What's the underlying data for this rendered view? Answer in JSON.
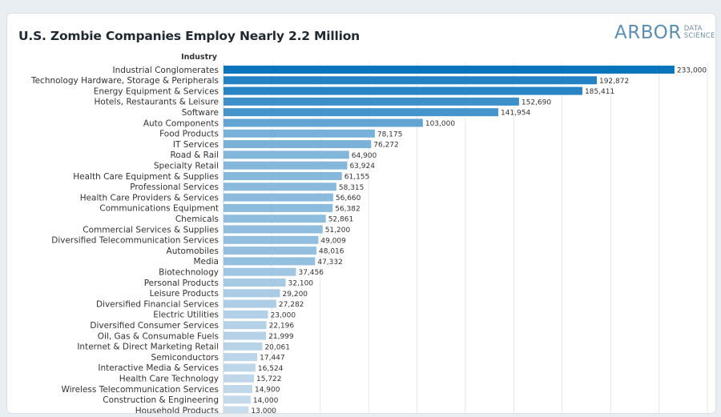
{
  "header": {
    "title": "U.S. Zombie Companies Employ Nearly 2.2 Million"
  },
  "logo": {
    "main": "ARBOR",
    "sub1": "DATA",
    "sub2": "SCIENCE"
  },
  "chart_data": {
    "type": "bar",
    "orientation": "horizontal",
    "title": "U.S. Zombie Companies Employ Nearly 2.2 Million",
    "ylabel": "Industry",
    "xlim": [
      0,
      250000
    ],
    "grid": true,
    "categories": [
      "Industrial Conglomerates",
      "Technology Hardware, Storage & Peripherals",
      "Energy Equipment & Services",
      "Hotels, Restaurants & Leisure",
      "Software",
      "Auto Components",
      "Food Products",
      "IT Services",
      "Road & Rail",
      "Specialty Retail",
      "Health Care Equipment & Supplies",
      "Professional Services",
      "Health Care Providers & Services",
      "Communications Equipment",
      "Chemicals",
      "Commercial Services & Supplies",
      "Diversified Telecommunication Services",
      "Automobiles",
      "Media",
      "Biotechnology",
      "Personal Products",
      "Leisure Products",
      "Diversified Financial Services",
      "Electric Utilities",
      "Diversified Consumer Services",
      "Oil, Gas & Consumable Fuels",
      "Internet & Direct Marketing Retail",
      "Semiconductors",
      "Interactive Media & Services",
      "Health Care Technology",
      "Wireless Telecommunication Services",
      "Construction & Engineering",
      "Household Products"
    ],
    "values": [
      233000,
      192872,
      185411,
      152690,
      141954,
      103000,
      78175,
      76272,
      64900,
      63924,
      61155,
      58315,
      56660,
      56382,
      52861,
      51200,
      49009,
      48016,
      47332,
      37456,
      32100,
      29200,
      27282,
      23000,
      22196,
      21999,
      20061,
      17447,
      16524,
      15722,
      14900,
      14000,
      13000
    ],
    "value_labels": [
      "233,000",
      "192,872",
      "185,411",
      "152,690",
      "141,954",
      "103,000",
      "78,175",
      "76,272",
      "64,900",
      "63,924",
      "61,155",
      "58,315",
      "56,660",
      "56,382",
      "52,861",
      "51,200",
      "49,009",
      "48,016",
      "47,332",
      "37,456",
      "32,100",
      "29,200",
      "27,282",
      "23,000",
      "22,196",
      "21,999",
      "20,061",
      "17,447",
      "16,524",
      "15,722",
      "14,900",
      "14,000",
      "13,000"
    ],
    "color_scale": {
      "low": "#c8dcec",
      "high": "#0a74bd"
    }
  }
}
